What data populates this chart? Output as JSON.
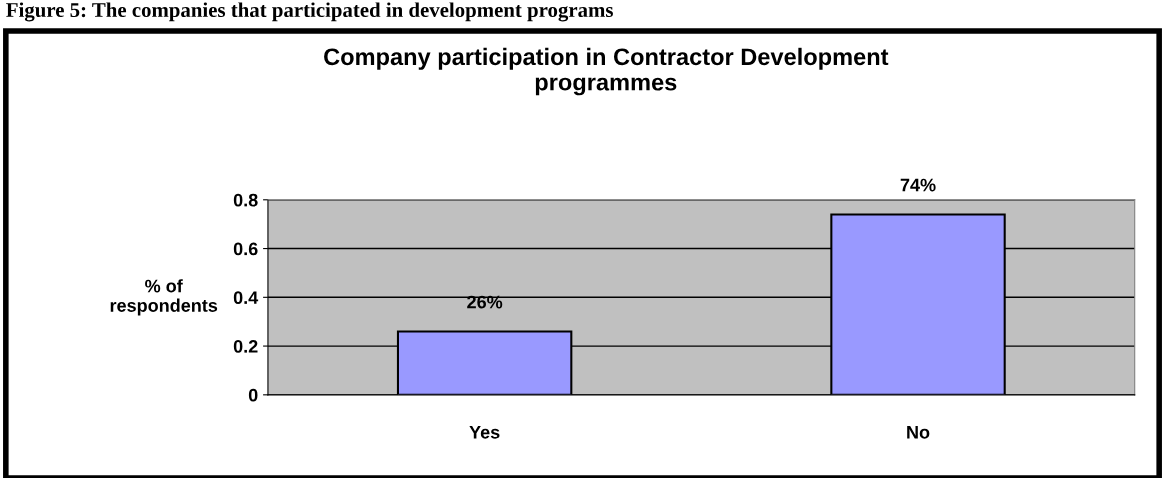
{
  "chart_data": {
    "type": "bar",
    "title": "Company participation in Contractor Development\nprogrammes",
    "ylabel": "% of\nrespondents",
    "annotations": [
      "Figure 5: The companies that participated in development programs"
    ],
    "categories": [
      "Yes",
      "No"
    ],
    "values": [
      0.26,
      0.74
    ],
    "value_labels": [
      "26%",
      "74%"
    ],
    "color": "#9999ff",
    "ylim": [
      0,
      0.8
    ],
    "yticks": [
      0,
      0.2,
      0.4,
      0.6,
      0.8
    ],
    "grid": "y"
  }
}
